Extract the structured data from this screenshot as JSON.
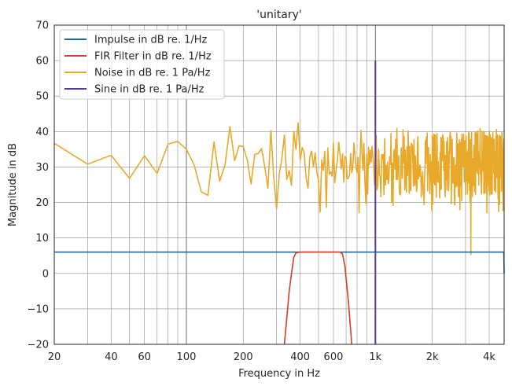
{
  "chart_data": {
    "type": "line",
    "title": "'unitary'",
    "xlabel": "Frequency in Hz",
    "ylabel": "Magnitude in dB",
    "xscale": "log",
    "xlim": [
      20,
      4800
    ],
    "ylim": [
      -20,
      70
    ],
    "xtick_values": [
      20,
      40,
      60,
      100,
      200,
      400,
      600,
      1000,
      2000,
      4000
    ],
    "xtick_labels": [
      "20",
      "40",
      "60",
      "100",
      "200",
      "400",
      "600",
      "1k",
      "2k",
      "4k"
    ],
    "ytick_values": [
      -20,
      -10,
      0,
      10,
      20,
      30,
      40,
      50,
      60,
      70
    ],
    "ytick_labels": [
      "−20",
      "−10",
      "0",
      "10",
      "20",
      "30",
      "40",
      "50",
      "60",
      "70"
    ],
    "grid": true,
    "legend_position": "top-left",
    "series": [
      {
        "name": "Impulse in dB re. 1/Hz",
        "color": "#1f6b96",
        "points": [
          [
            20,
            6.0
          ],
          [
            4780,
            6.0
          ],
          [
            4800,
            0.0
          ]
        ]
      },
      {
        "name": "FIR Filter in dB re. 1/Hz",
        "color": "#d1402a",
        "points": [
          [
            330,
            -20
          ],
          [
            350,
            -5
          ],
          [
            360,
            0
          ],
          [
            370,
            4.5
          ],
          [
            380,
            5.8
          ],
          [
            400,
            6.0
          ],
          [
            650,
            6.0
          ],
          [
            670,
            5.5
          ],
          [
            690,
            2.0
          ],
          [
            720,
            -8
          ],
          [
            750,
            -20
          ]
        ]
      },
      {
        "name": "Noise in dB re. 1 Pa/Hz",
        "color": "#e8a92b",
        "points": []
      },
      {
        "name": "Sine in dB re. 1 Pa/Hz",
        "color": "#5b3c8e",
        "points": [
          [
            1000,
            -20
          ],
          [
            1000,
            60
          ]
        ]
      }
    ],
    "noise_description": {
      "low_freq_points": [
        [
          20,
          36.7
        ],
        [
          30,
          30.8
        ],
        [
          40,
          33.3
        ],
        [
          50,
          26.8
        ],
        [
          60,
          33.2
        ],
        [
          70,
          28.2
        ],
        [
          80,
          36.5
        ],
        [
          90,
          37.2
        ],
        [
          100,
          35.0
        ],
        [
          110,
          30.5
        ],
        [
          120,
          23.0
        ],
        [
          130,
          22.0
        ],
        [
          140,
          37.1
        ],
        [
          150,
          26.0
        ],
        [
          160,
          30.5
        ],
        [
          170,
          41.4
        ],
        [
          180,
          31.8
        ],
        [
          190,
          36.0
        ],
        [
          200,
          35.8
        ],
        [
          210,
          32.0
        ],
        [
          220,
          25.2
        ],
        [
          230,
          33.6
        ],
        [
          240,
          33.8
        ],
        [
          250,
          35.2
        ],
        [
          260,
          30.0
        ],
        [
          270,
          24.0
        ],
        [
          280,
          40.3
        ],
        [
          290,
          27.0
        ],
        [
          300,
          18.2
        ],
        [
          310,
          28.0
        ],
        [
          320,
          32.3
        ],
        [
          330,
          39.0
        ],
        [
          340,
          26.5
        ],
        [
          350,
          29.0
        ],
        [
          360,
          24.8
        ],
        [
          370,
          40.0
        ],
        [
          380,
          35.0
        ],
        [
          390,
          42.5
        ],
        [
          400,
          32.0
        ],
        [
          410,
          35.5
        ],
        [
          420,
          34.0
        ],
        [
          430,
          27.0
        ],
        [
          440,
          24.0
        ],
        [
          450,
          33.0
        ],
        [
          460,
          34.5
        ],
        [
          470,
          30.0
        ],
        [
          480,
          34.0
        ],
        [
          490,
          28.5
        ]
      ]
    }
  }
}
